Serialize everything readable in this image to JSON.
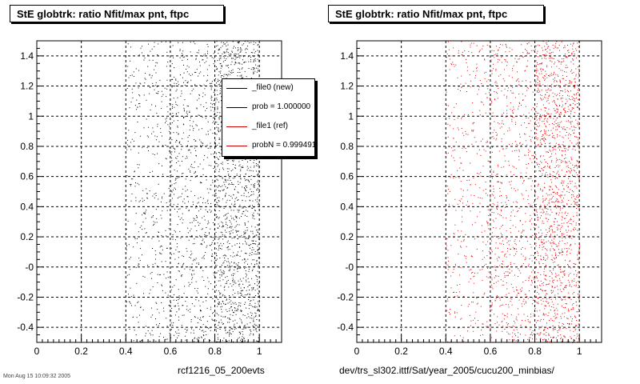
{
  "chart_data": [
    {
      "type": "scatter",
      "title": "StE globtrk: ratio Nfit/max pnt, ftpc",
      "xlabel": "rcf1216_05_200evts",
      "ylabel": "",
      "xlim": [
        0,
        1.1
      ],
      "ylim": [
        -0.5,
        1.5
      ],
      "x_ticks": [
        "0",
        "0.2",
        "0.4",
        "0.6",
        "0.8",
        "1"
      ],
      "y_ticks": [
        "-0.4",
        "-0.2",
        "-0",
        "0.2",
        "0.4",
        "0.6",
        "0.8",
        "1",
        "1.2",
        "1.4"
      ],
      "grid": true,
      "point_color": "#000000",
      "bands": [
        {
          "x": [
            0.4,
            0.6
          ],
          "density": 0.25
        },
        {
          "x": [
            0.6,
            0.8
          ],
          "density": 0.45
        },
        {
          "x": [
            0.8,
            1.0
          ],
          "density": 1.0
        }
      ],
      "legend": {
        "placement": "top-right",
        "entries": [
          {
            "label": "_file0 (new)",
            "color": "#000000"
          },
          {
            "label": "prob = 1.000000",
            "color": "#000000"
          },
          {
            "label": "_file1 (ref)",
            "color": "#cc0000"
          },
          {
            "label": "probN = 0.999491",
            "color": "#cc0000"
          }
        ]
      }
    },
    {
      "type": "scatter",
      "title": "StE globtrk: ratio Nfit/max pnt, ftpc",
      "xlabel": "dev/trs_sl302.ittf/Sat/year_2005/cucu200_minbias/",
      "ylabel": "",
      "xlim": [
        0,
        1.1
      ],
      "ylim": [
        -0.5,
        1.5
      ],
      "x_ticks": [
        "0",
        "0.2",
        "0.4",
        "0.6",
        "0.8",
        "1"
      ],
      "y_ticks": [
        "-0.4",
        "-0.2",
        "-0",
        "0.2",
        "0.4",
        "0.6",
        "0.8",
        "1",
        "1.2",
        "1.4"
      ],
      "grid": true,
      "point_color": "#dd0000",
      "bands": [
        {
          "x": [
            0.4,
            0.6
          ],
          "density": 0.25
        },
        {
          "x": [
            0.6,
            0.8
          ],
          "density": 0.45
        },
        {
          "x": [
            0.8,
            1.0
          ],
          "density": 1.0
        }
      ]
    }
  ],
  "footer": {
    "stamp": "Mon Aug 15 10:09:32 2005"
  }
}
